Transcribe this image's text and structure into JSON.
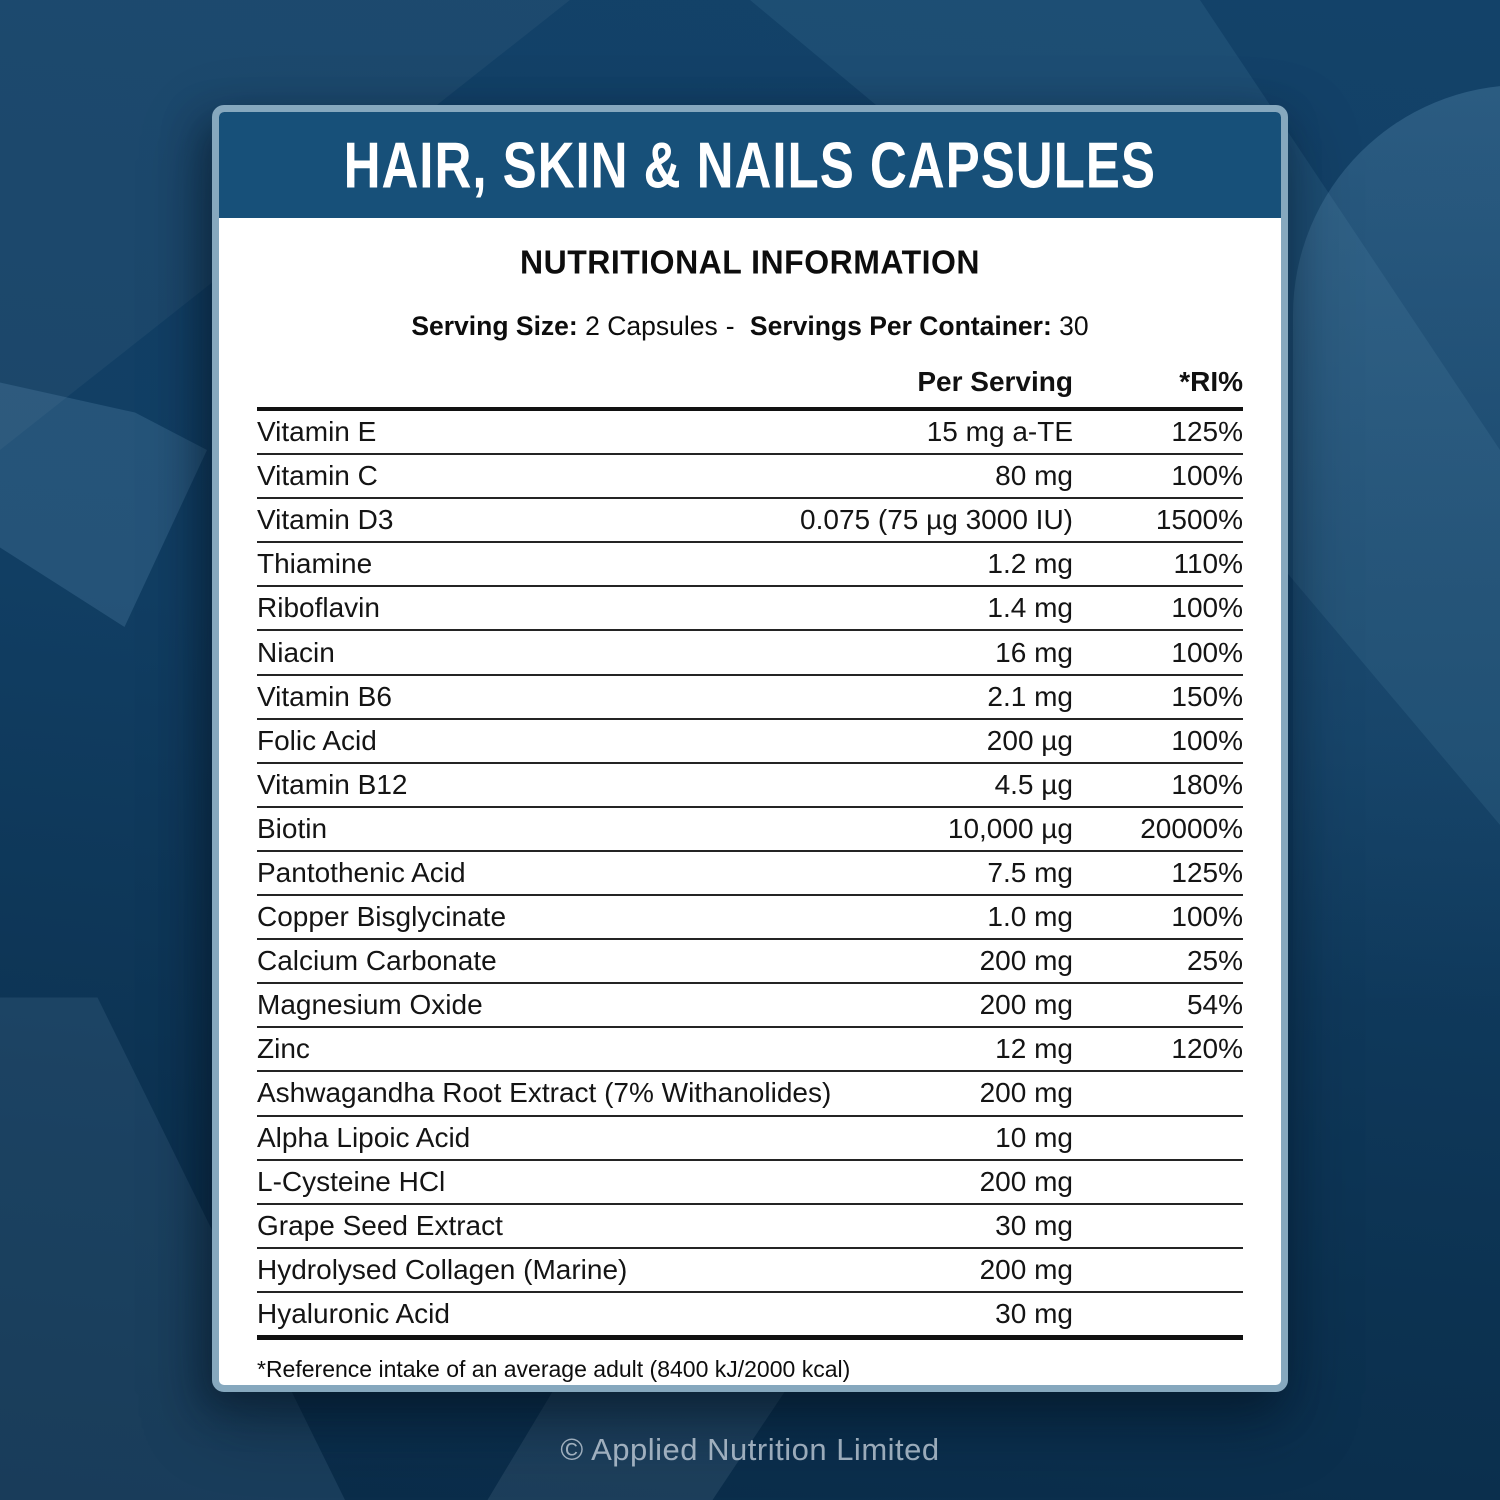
{
  "title": "HAIR, SKIN & NAILS CAPSULES",
  "section_heading": "NUTRITIONAL INFORMATION",
  "serving": {
    "size_label": "Serving Size:",
    "size_value": "2 Capsules",
    "separator": "-",
    "container_label": "Servings Per Container:",
    "container_value": "30"
  },
  "table": {
    "headers": {
      "per_serving": "Per Serving",
      "ri": "*RI%"
    },
    "rows": [
      {
        "name": "Vitamin E",
        "amount": "15 mg a-TE",
        "ri": "125%"
      },
      {
        "name": "Vitamin C",
        "amount": "80 mg",
        "ri": "100%"
      },
      {
        "name": "Vitamin D3",
        "amount": "0.075 (75 µg 3000 IU)",
        "ri": "1500%"
      },
      {
        "name": "Thiamine",
        "amount": "1.2 mg",
        "ri": "110%"
      },
      {
        "name": "Riboflavin",
        "amount": "1.4 mg",
        "ri": "100%"
      },
      {
        "name": "Niacin",
        "amount": "16 mg",
        "ri": "100%"
      },
      {
        "name": "Vitamin B6",
        "amount": "2.1 mg",
        "ri": "150%"
      },
      {
        "name": "Folic Acid",
        "amount": "200 µg",
        "ri": "100%"
      },
      {
        "name": "Vitamin B12",
        "amount": "4.5 µg",
        "ri": "180%"
      },
      {
        "name": "Biotin",
        "amount": "10,000 µg",
        "ri": "20000%"
      },
      {
        "name": "Pantothenic Acid",
        "amount": "7.5 mg",
        "ri": "125%"
      },
      {
        "name": "Copper Bisglycinate",
        "amount": "1.0 mg",
        "ri": "100%"
      },
      {
        "name": "Calcium Carbonate",
        "amount": "200 mg",
        "ri": "25%"
      },
      {
        "name": "Magnesium Oxide",
        "amount": "200 mg",
        "ri": "54%"
      },
      {
        "name": "Zinc",
        "amount": "12 mg",
        "ri": "120%"
      },
      {
        "name": "Ashwagandha Root Extract (7% Withanolides)",
        "amount": "200 mg",
        "ri": ""
      },
      {
        "name": "Alpha Lipoic Acid",
        "amount": "10 mg",
        "ri": ""
      },
      {
        "name": "L-Cysteine HCl",
        "amount": "200 mg",
        "ri": ""
      },
      {
        "name": "Grape Seed Extract",
        "amount": "30 mg",
        "ri": ""
      },
      {
        "name": "Hydrolysed Collagen (Marine)",
        "amount": "200 mg",
        "ri": ""
      },
      {
        "name": "Hyaluronic Acid",
        "amount": "30 mg",
        "ri": ""
      }
    ]
  },
  "footnote": "*Reference intake of an average adult (8400 kJ/2000 kcal)",
  "copyright": "© Applied Nutrition Limited",
  "colors": {
    "background_navy": "#0f3d61",
    "header_band_blue": "#175079",
    "card_border_blue": "#86a8be",
    "card_white": "#ffffff",
    "text_dark": "#111111",
    "copyright_gray": "#d2dde6"
  }
}
